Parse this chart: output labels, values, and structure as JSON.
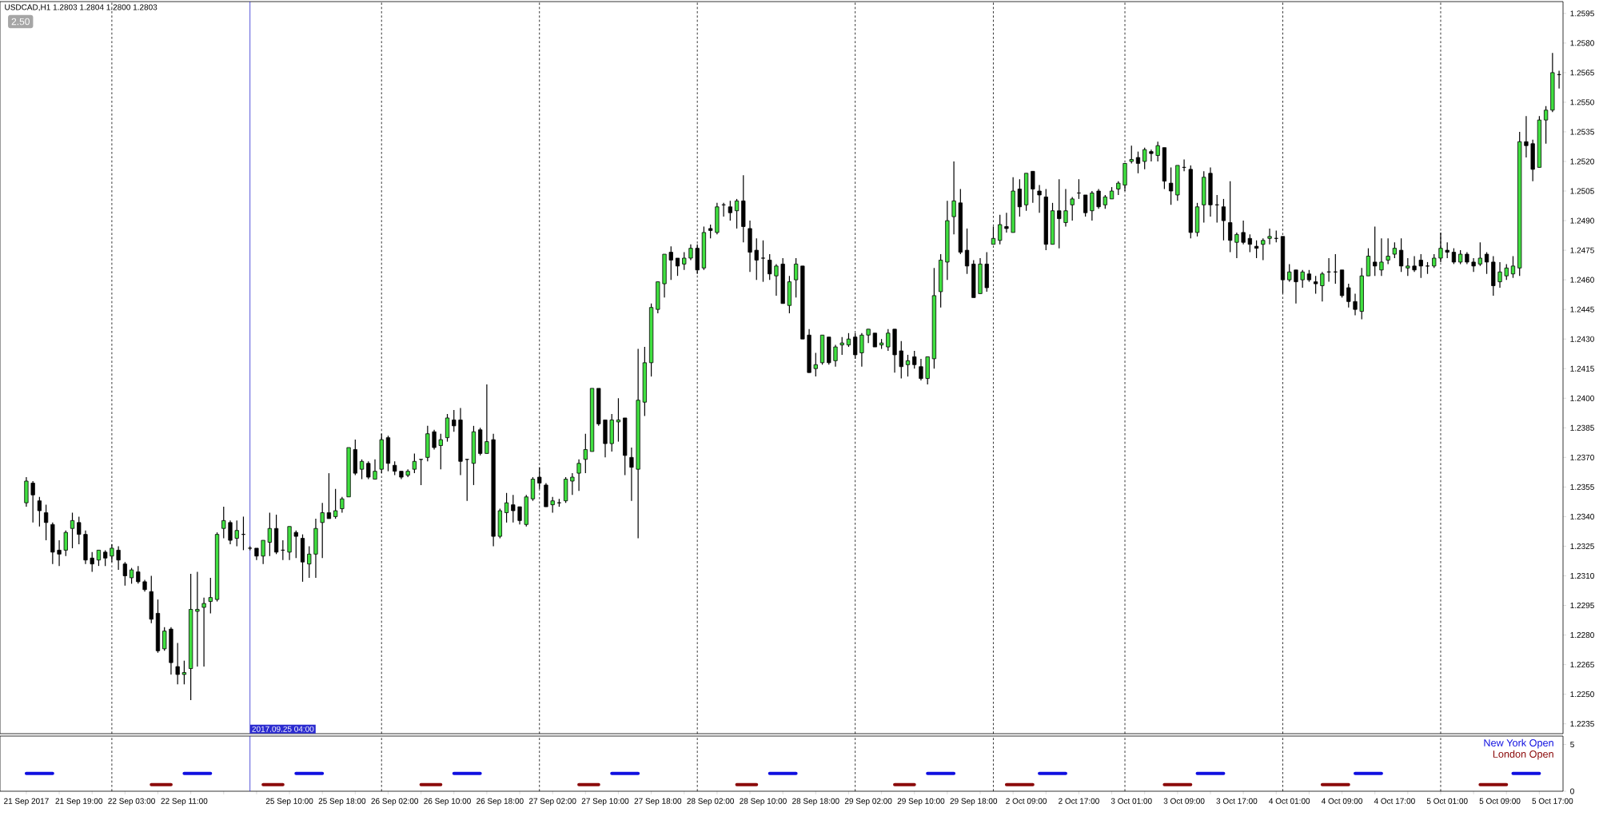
{
  "chart_data": [
    {
      "type": "candlestick",
      "title": "USDCAD,H1 1.2803 1.2804 1.2800 1.2803",
      "annotations": [
        "2.50",
        "2017.09.25 04:00"
      ],
      "categories": [
        "21 Sep 2017",
        null,
        null,
        null,
        null,
        null,
        null,
        null,
        "21 Sep 19:00",
        null,
        null,
        null,
        null,
        null,
        null,
        null,
        "22 Sep 03:00",
        null,
        null,
        null,
        null,
        null,
        null,
        null,
        "22 Sep 11:00",
        null,
        null,
        null,
        null,
        null,
        null,
        null,
        null,
        null,
        null,
        null,
        null,
        null,
        null,
        null,
        "25 Sep 10:00",
        null,
        null,
        null,
        null,
        null,
        null,
        null,
        "25 Sep 18:00",
        null,
        null,
        null,
        null,
        null,
        null,
        null,
        "26 Sep 02:00",
        null,
        null,
        null,
        null,
        null,
        null,
        null,
        "26 Sep 10:00",
        null,
        null,
        null,
        null,
        null,
        null,
        null,
        "26 Sep 18:00",
        null,
        null,
        null,
        null,
        null,
        null,
        null,
        "27 Sep 02:00",
        null,
        null,
        null,
        null,
        null,
        null,
        null,
        "27 Sep 10:00",
        null,
        null,
        null,
        null,
        null,
        null,
        null,
        "27 Sep 18:00",
        null,
        null,
        null,
        null,
        null,
        null,
        null,
        "28 Sep 02:00",
        null,
        null,
        null,
        null,
        null,
        null,
        null,
        "28 Sep 10:00",
        null,
        null,
        null,
        null,
        null,
        null,
        null,
        "28 Sep 18:00",
        null,
        null,
        null,
        null,
        null,
        null,
        null,
        "29 Sep 02:00",
        null,
        null,
        null,
        null,
        null,
        null,
        null,
        "29 Sep 10:00",
        null,
        null,
        null,
        null,
        null,
        null,
        null,
        "29 Sep 18:00",
        null,
        null,
        null,
        null,
        null,
        null,
        null,
        "2 Oct 09:00",
        null,
        null,
        null,
        null,
        null,
        null,
        null,
        "2 Oct 17:00",
        null,
        null,
        null,
        null,
        null,
        null,
        null,
        "3 Oct 01:00",
        null,
        null,
        null,
        null,
        null,
        null,
        null,
        "3 Oct 09:00",
        null,
        null,
        null,
        null,
        null,
        null,
        null,
        "3 Oct 17:00",
        null,
        null,
        null,
        null,
        null,
        null,
        null,
        "4 Oct 01:00",
        null,
        null,
        null,
        null,
        null,
        null,
        null,
        "4 Oct 09:00",
        null,
        null,
        null,
        null,
        null,
        null,
        null,
        "4 Oct 17:00",
        null,
        null,
        null,
        null,
        null,
        null,
        null,
        "5 Oct 01:00",
        null,
        null,
        null,
        null,
        null,
        null,
        null,
        "5 Oct 09:00",
        null,
        null,
        null,
        null,
        null,
        null,
        null,
        "5 Oct 17:00",
        null
      ],
      "ohlc": [
        [
          1.2347,
          1.236,
          1.2345,
          1.2358
        ],
        [
          1.2357,
          1.2358,
          1.2337,
          1.2351
        ],
        [
          1.2348,
          1.235,
          1.2335,
          1.2343
        ],
        [
          1.2342,
          1.2346,
          1.2328,
          1.2337
        ],
        [
          1.2336,
          1.2337,
          1.2316,
          1.2322
        ],
        [
          1.2323,
          1.2328,
          1.2315,
          1.2321
        ],
        [
          1.2323,
          1.2333,
          1.232,
          1.2332
        ],
        [
          1.2334,
          1.2342,
          1.2324,
          1.2338
        ],
        [
          1.2337,
          1.234,
          1.2326,
          1.2331
        ],
        [
          1.2331,
          1.2333,
          1.2316,
          1.2318
        ],
        [
          1.2319,
          1.2322,
          1.2312,
          1.2316
        ],
        [
          1.2318,
          1.2323,
          1.2315,
          1.2323
        ],
        [
          1.2322,
          1.2323,
          1.2315,
          1.2319
        ],
        [
          1.232,
          1.2326,
          1.2317,
          1.2324
        ],
        [
          1.2323,
          1.2325,
          1.2313,
          1.2318
        ],
        [
          1.2316,
          1.2317,
          1.2305,
          1.231
        ],
        [
          1.2309,
          1.2314,
          1.2306,
          1.2313
        ],
        [
          1.2312,
          1.2315,
          1.2306,
          1.2307
        ],
        [
          1.2307,
          1.2308,
          1.2302,
          1.2303
        ],
        [
          1.2302,
          1.231,
          1.2286,
          1.2288
        ],
        [
          1.2291,
          1.2298,
          1.2271,
          1.2272
        ],
        [
          1.2273,
          1.2284,
          1.2272,
          1.2282
        ],
        [
          1.2283,
          1.2284,
          1.226,
          1.2266
        ],
        [
          1.2264,
          1.2276,
          1.2255,
          1.226
        ],
        [
          1.226,
          1.2267,
          1.2255,
          1.2261
        ],
        [
          1.2263,
          1.2311,
          1.2247,
          1.2293
        ],
        [
          1.2292,
          1.2312,
          1.2264,
          1.2293
        ],
        [
          1.2294,
          1.2299,
          1.2264,
          1.2296
        ],
        [
          1.2297,
          1.2309,
          1.2291,
          1.2299
        ],
        [
          1.2298,
          1.2332,
          1.2297,
          1.2331
        ],
        [
          1.2334,
          1.2345,
          1.2329,
          1.2338
        ],
        [
          1.2337,
          1.2338,
          1.2326,
          1.2328
        ],
        [
          1.2329,
          1.2338,
          1.2325,
          1.2333
        ],
        [
          1.2331,
          1.234,
          1.2323,
          1.2331
        ],
        [
          1.2324,
          1.2325,
          1.2323,
          1.2324
        ],
        [
          1.2324,
          1.2324,
          1.2318,
          1.232
        ],
        [
          1.232,
          1.2328,
          1.2316,
          1.2328
        ],
        [
          1.2327,
          1.2342,
          1.232,
          1.2334
        ],
        [
          1.2334,
          1.2341,
          1.2321,
          1.2322
        ],
        [
          1.2323,
          1.2328,
          1.2318,
          1.2323
        ],
        [
          1.2322,
          1.2335,
          1.2318,
          1.2335
        ],
        [
          1.2332,
          1.2333,
          1.2319,
          1.233
        ],
        [
          1.2329,
          1.2331,
          1.2307,
          1.2317
        ],
        [
          1.2316,
          1.2325,
          1.2309,
          1.2321
        ],
        [
          1.2321,
          1.2339,
          1.2309,
          1.2334
        ],
        [
          1.2337,
          1.2347,
          1.2319,
          1.2342
        ],
        [
          1.2342,
          1.2362,
          1.2339,
          1.2339
        ],
        [
          1.234,
          1.2354,
          1.2339,
          1.2343
        ],
        [
          1.2344,
          1.235,
          1.2342,
          1.2349
        ],
        [
          1.235,
          1.2375,
          1.235,
          1.2375
        ],
        [
          1.2374,
          1.2379,
          1.2361,
          1.2362
        ],
        [
          1.2364,
          1.2369,
          1.2359,
          1.2368
        ],
        [
          1.2367,
          1.2368,
          1.2359,
          1.236
        ],
        [
          1.2359,
          1.2369,
          1.2359,
          1.2363
        ],
        [
          1.2364,
          1.2382,
          1.2362,
          1.2379
        ],
        [
          1.238,
          1.2381,
          1.2363,
          1.2367
        ],
        [
          1.2366,
          1.2368,
          1.2361,
          1.2363
        ],
        [
          1.2363,
          1.2363,
          1.2359,
          1.236
        ],
        [
          1.2361,
          1.2364,
          1.236,
          1.2363
        ],
        [
          1.2364,
          1.2372,
          1.2362,
          1.2368
        ],
        [
          1.2369,
          1.2369,
          1.2356,
          1.2369
        ],
        [
          1.237,
          1.2386,
          1.2368,
          1.2382
        ],
        [
          1.2383,
          1.2384,
          1.2374,
          1.2375
        ],
        [
          1.2376,
          1.2382,
          1.2364,
          1.2379
        ],
        [
          1.238,
          1.2392,
          1.2378,
          1.239
        ],
        [
          1.2389,
          1.2394,
          1.2383,
          1.2386
        ],
        [
          1.2389,
          1.2395,
          1.2361,
          1.2368
        ],
        [
          1.2369,
          1.2369,
          1.2348,
          1.2369
        ],
        [
          1.2367,
          1.2386,
          1.2356,
          1.2383
        ],
        [
          1.2384,
          1.2385,
          1.2371,
          1.2372
        ],
        [
          1.2372,
          1.2407,
          1.2372,
          1.2378
        ],
        [
          1.2379,
          1.2382,
          1.2325,
          1.233
        ],
        [
          1.233,
          1.2344,
          1.2329,
          1.2343
        ],
        [
          1.2342,
          1.2352,
          1.2337,
          1.2347
        ],
        [
          1.2346,
          1.2351,
          1.2337,
          1.2343
        ],
        [
          1.2345,
          1.2345,
          1.2336,
          1.2338
        ],
        [
          1.2336,
          1.2351,
          1.2335,
          1.235
        ],
        [
          1.2349,
          1.236,
          1.2348,
          1.2359
        ],
        [
          1.236,
          1.2365,
          1.2354,
          1.2357
        ],
        [
          1.2356,
          1.2357,
          1.2345,
          1.2345
        ],
        [
          1.2346,
          1.235,
          1.2342,
          1.2348
        ],
        [
          1.2347,
          1.2349,
          1.2345,
          1.2347
        ],
        [
          1.2348,
          1.236,
          1.2347,
          1.2359
        ],
        [
          1.2358,
          1.2362,
          1.2351,
          1.236
        ],
        [
          1.2362,
          1.2369,
          1.2353,
          1.2367
        ],
        [
          1.2369,
          1.2382,
          1.2362,
          1.2374
        ],
        [
          1.2373,
          1.2405,
          1.2373,
          1.2405
        ],
        [
          1.2405,
          1.2405,
          1.2386,
          1.2387
        ],
        [
          1.2389,
          1.2389,
          1.237,
          1.2377
        ],
        [
          1.2377,
          1.2392,
          1.2373,
          1.2389
        ],
        [
          1.2388,
          1.24,
          1.2378,
          1.2389
        ],
        [
          1.239,
          1.239,
          1.2361,
          1.2371
        ],
        [
          1.237,
          1.2375,
          1.2348,
          1.2365
        ],
        [
          1.2364,
          1.2425,
          1.2329,
          1.2399
        ],
        [
          1.2398,
          1.2426,
          1.2391,
          1.2418
        ],
        [
          1.2418,
          1.2448,
          1.2411,
          1.2446
        ],
        [
          1.2445,
          1.2459,
          1.2443,
          1.2459
        ],
        [
          1.2458,
          1.2473,
          1.2451,
          1.2473
        ],
        [
          1.2474,
          1.2477,
          1.246,
          1.247
        ],
        [
          1.2471,
          1.2471,
          1.2462,
          1.2467
        ],
        [
          1.2468,
          1.2474,
          1.2465,
          1.2471
        ],
        [
          1.2471,
          1.2478,
          1.247,
          1.2476
        ],
        [
          1.2476,
          1.2478,
          1.2463,
          1.2465
        ],
        [
          1.2466,
          1.2487,
          1.2465,
          1.2484
        ],
        [
          1.2486,
          1.2488,
          1.2481,
          1.2485
        ],
        [
          1.2484,
          1.2499,
          1.2483,
          1.2497
        ],
        [
          1.2498,
          1.2499,
          1.2492,
          1.2498
        ],
        [
          1.2497,
          1.25,
          1.249,
          1.2494
        ],
        [
          1.2495,
          1.2501,
          1.2486,
          1.25
        ],
        [
          1.25,
          1.2513,
          1.2479,
          1.2487
        ],
        [
          1.2486,
          1.249,
          1.2464,
          1.2474
        ],
        [
          1.2475,
          1.2481,
          1.246,
          1.247
        ],
        [
          1.2471,
          1.248,
          1.2459,
          1.2471
        ],
        [
          1.247,
          1.2473,
          1.246,
          1.2463
        ],
        [
          1.2462,
          1.2468,
          1.2452,
          1.2467
        ],
        [
          1.2468,
          1.2471,
          1.2448,
          1.2448
        ],
        [
          1.2447,
          1.2462,
          1.2443,
          1.2459
        ],
        [
          1.246,
          1.2471,
          1.2451,
          1.2468
        ],
        [
          1.2467,
          1.2467,
          1.243,
          1.243
        ],
        [
          1.2432,
          1.2435,
          1.2413,
          1.2413
        ],
        [
          1.2415,
          1.2423,
          1.2411,
          1.2417
        ],
        [
          1.2418,
          1.2432,
          1.2417,
          1.2432
        ],
        [
          1.2431,
          1.2431,
          1.2417,
          1.2418
        ],
        [
          1.2419,
          1.2427,
          1.2416,
          1.2426
        ],
        [
          1.2427,
          1.2431,
          1.2422,
          1.2428
        ],
        [
          1.2427,
          1.2433,
          1.2426,
          1.243
        ],
        [
          1.2431,
          1.2433,
          1.242,
          1.2422
        ],
        [
          1.2423,
          1.2433,
          1.2416,
          1.2432
        ],
        [
          1.2432,
          1.2435,
          1.2428,
          1.2435
        ],
        [
          1.2433,
          1.2433,
          1.2426,
          1.2426
        ],
        [
          1.2427,
          1.243,
          1.2425,
          1.2428
        ],
        [
          1.2426,
          1.2435,
          1.2424,
          1.2433
        ],
        [
          1.2435,
          1.2435,
          1.2413,
          1.2422
        ],
        [
          1.2424,
          1.2429,
          1.241,
          1.2416
        ],
        [
          1.2417,
          1.2422,
          1.2411,
          1.2419
        ],
        [
          1.2421,
          1.2424,
          1.2415,
          1.2417
        ],
        [
          1.2416,
          1.242,
          1.2409,
          1.241
        ],
        [
          1.241,
          1.2421,
          1.2407,
          1.2421
        ],
        [
          1.242,
          1.2466,
          1.2415,
          1.2452
        ],
        [
          1.2454,
          1.2473,
          1.2446,
          1.247
        ],
        [
          1.2469,
          1.25,
          1.246,
          1.249
        ],
        [
          1.2492,
          1.252,
          1.2483,
          1.25
        ],
        [
          1.2499,
          1.2506,
          1.2473,
          1.2474
        ],
        [
          1.2475,
          1.2486,
          1.2463,
          1.2467
        ],
        [
          1.2468,
          1.247,
          1.2451,
          1.2451
        ],
        [
          1.2453,
          1.2471,
          1.2453,
          1.2468
        ],
        [
          1.2468,
          1.2474,
          1.2454,
          1.2456
        ],
        [
          1.2478,
          1.2487,
          1.2478,
          1.2481
        ],
        [
          1.248,
          1.2493,
          1.2478,
          1.2488
        ],
        [
          1.2487,
          1.2494,
          1.2484,
          1.2486
        ],
        [
          1.2484,
          1.2512,
          1.2484,
          1.2505
        ],
        [
          1.2506,
          1.2511,
          1.2492,
          1.2497
        ],
        [
          1.2498,
          1.2514,
          1.2495,
          1.2514
        ],
        [
          1.2515,
          1.2515,
          1.2499,
          1.2506
        ],
        [
          1.2505,
          1.2508,
          1.2494,
          1.2503
        ],
        [
          1.2502,
          1.2506,
          1.2475,
          1.2478
        ],
        [
          1.2478,
          1.2499,
          1.2478,
          1.2495
        ],
        [
          1.2495,
          1.2511,
          1.2476,
          1.2491
        ],
        [
          1.2489,
          1.2506,
          1.2487,
          1.2495
        ],
        [
          1.2498,
          1.2502,
          1.249,
          1.2501
        ],
        [
          1.2504,
          1.2511,
          1.2501,
          1.2504
        ],
        [
          1.2503,
          1.2503,
          1.2492,
          1.2494
        ],
        [
          1.2495,
          1.2505,
          1.249,
          1.2504
        ],
        [
          1.2505,
          1.2506,
          1.2496,
          1.2497
        ],
        [
          1.2498,
          1.2503,
          1.2496,
          1.2502
        ],
        [
          1.2501,
          1.2507,
          1.2501,
          1.2505
        ],
        [
          1.2506,
          1.251,
          1.2503,
          1.2509
        ],
        [
          1.2508,
          1.2519,
          1.2505,
          1.2519
        ],
        [
          1.252,
          1.2528,
          1.2519,
          1.2521
        ],
        [
          1.2522,
          1.2525,
          1.2514,
          1.2519
        ],
        [
          1.252,
          1.2527,
          1.2516,
          1.2526
        ],
        [
          1.2525,
          1.2526,
          1.252,
          1.2524
        ],
        [
          1.2523,
          1.253,
          1.252,
          1.2528
        ],
        [
          1.2527,
          1.2527,
          1.2506,
          1.251
        ],
        [
          1.2509,
          1.2517,
          1.2498,
          1.2505
        ],
        [
          1.2503,
          1.2518,
          1.25,
          1.2518
        ],
        [
          1.2517,
          1.2521,
          1.2515,
          1.2517
        ],
        [
          1.2516,
          1.2518,
          1.2481,
          1.2484
        ],
        [
          1.2484,
          1.2499,
          1.2482,
          1.2497
        ],
        [
          1.2498,
          1.2515,
          1.2489,
          1.2512
        ],
        [
          1.2514,
          1.2517,
          1.2492,
          1.2498
        ],
        [
          1.2498,
          1.2503,
          1.2489,
          1.2498
        ],
        [
          1.2497,
          1.2501,
          1.248,
          1.249
        ],
        [
          1.2489,
          1.251,
          1.2474,
          1.248
        ],
        [
          1.2479,
          1.2484,
          1.2471,
          1.2483
        ],
        [
          1.2484,
          1.249,
          1.2478,
          1.2479
        ],
        [
          1.2481,
          1.2483,
          1.2474,
          1.2478
        ],
        [
          1.2477,
          1.248,
          1.2471,
          1.2476
        ],
        [
          1.2478,
          1.2481,
          1.247,
          1.248
        ],
        [
          1.2481,
          1.2486,
          1.2478,
          1.2482
        ],
        [
          1.2481,
          1.2485,
          1.2479,
          1.2481
        ],
        [
          1.2482,
          1.2482,
          1.2453,
          1.246
        ],
        [
          1.246,
          1.2468,
          1.2459,
          1.2464
        ],
        [
          1.2465,
          1.2465,
          1.2448,
          1.2459
        ],
        [
          1.246,
          1.2465,
          1.2456,
          1.2464
        ],
        [
          1.2463,
          1.2465,
          1.2459,
          1.246
        ],
        [
          1.2459,
          1.2462,
          1.2453,
          1.2458
        ],
        [
          1.2457,
          1.2464,
          1.2449,
          1.2463
        ],
        [
          1.2464,
          1.2471,
          1.2459,
          1.2464
        ],
        [
          1.2464,
          1.2473,
          1.2458,
          1.2464
        ],
        [
          1.2465,
          1.2465,
          1.2451,
          1.2452
        ],
        [
          1.2456,
          1.2458,
          1.2446,
          1.2449
        ],
        [
          1.2449,
          1.2453,
          1.2442,
          1.2445
        ],
        [
          1.2444,
          1.2466,
          1.244,
          1.2462
        ],
        [
          1.2462,
          1.2476,
          1.2462,
          1.2472
        ],
        [
          1.2469,
          1.2487,
          1.2462,
          1.2467
        ],
        [
          1.2465,
          1.2481,
          1.2462,
          1.2469
        ],
        [
          1.247,
          1.2481,
          1.2468,
          1.2472
        ],
        [
          1.2473,
          1.2479,
          1.2471,
          1.2476
        ],
        [
          1.2475,
          1.2481,
          1.2464,
          1.2467
        ],
        [
          1.2466,
          1.2471,
          1.2462,
          1.2467
        ],
        [
          1.2467,
          1.2472,
          1.2464,
          1.2465
        ],
        [
          1.247,
          1.2473,
          1.2461,
          1.2467
        ],
        [
          1.2467,
          1.2469,
          1.2463,
          1.2467
        ],
        [
          1.2467,
          1.2473,
          1.2466,
          1.2471
        ],
        [
          1.2471,
          1.2484,
          1.2469,
          1.2476
        ],
        [
          1.2475,
          1.2479,
          1.2471,
          1.2474
        ],
        [
          1.2474,
          1.2476,
          1.2468,
          1.2469
        ],
        [
          1.2469,
          1.2475,
          1.2468,
          1.2473
        ],
        [
          1.2473,
          1.2474,
          1.2468,
          1.2469
        ],
        [
          1.2469,
          1.2471,
          1.2464,
          1.2467
        ],
        [
          1.2468,
          1.2479,
          1.2467,
          1.2471
        ],
        [
          1.2473,
          1.2474,
          1.2463,
          1.2469
        ],
        [
          1.2469,
          1.2472,
          1.2452,
          1.2457
        ],
        [
          1.2459,
          1.2469,
          1.2456,
          1.2464
        ],
        [
          1.2462,
          1.2468,
          1.246,
          1.2466
        ],
        [
          1.2463,
          1.2472,
          1.2461,
          1.2467
        ],
        [
          1.2466,
          1.2535,
          1.2462,
          1.253
        ],
        [
          1.253,
          1.2543,
          1.2522,
          1.2528
        ],
        [
          1.2529,
          1.2531,
          1.251,
          1.2516
        ],
        [
          1.2517,
          1.2543,
          1.2517,
          1.2541
        ],
        [
          1.2541,
          1.2548,
          1.2529,
          1.2546
        ],
        [
          1.2546,
          1.2575,
          1.2545,
          1.2565
        ],
        [
          1.2564,
          1.2566,
          1.2557,
          1.2564
        ]
      ],
      "yticks": [
        1.2235,
        {
          "value": 1.225,
          "label": "1.2250"
        },
        1.2265,
        {
          "value": 1.228,
          "label": "1.2280"
        },
        1.2295,
        {
          "value": 1.231,
          "label": "1.2310"
        },
        1.2325,
        {
          "value": 1.234,
          "label": "1.2340"
        },
        1.2355,
        {
          "value": 1.237,
          "label": "1.2370"
        },
        1.2385,
        {
          "value": 1.24,
          "label": "1.2400"
        },
        1.2415,
        {
          "value": 1.243,
          "label": "1.2430"
        },
        1.2445,
        {
          "value": 1.246,
          "label": "1.2460"
        },
        1.2475,
        {
          "value": 1.249,
          "label": "1.2490"
        },
        1.2505,
        {
          "value": 1.252,
          "label": "1.2520"
        },
        1.2535,
        {
          "value": 1.255,
          "label": "1.2550"
        },
        1.2565,
        {
          "value": 1.258,
          "label": "1.2580"
        },
        1.2595
      ],
      "ylim": [
        1.223,
        1.2601
      ]
    },
    {
      "type": "line",
      "legend": "top right",
      "tick_labels": "y",
      "categories": [
        null,
        null,
        null,
        null,
        null,
        null,
        null,
        null,
        null,
        null,
        null,
        null,
        null,
        null,
        null,
        null,
        null,
        null,
        null,
        null,
        null,
        null,
        null,
        null,
        null,
        null,
        null,
        null,
        null,
        null,
        null,
        null,
        null,
        null,
        null,
        null,
        null,
        null,
        null,
        null,
        null,
        null,
        null,
        null,
        null,
        null,
        null,
        null,
        null,
        null,
        null,
        null,
        null,
        null,
        null,
        null,
        null,
        null,
        null,
        null,
        null,
        null,
        null,
        null,
        null,
        null,
        null,
        null,
        null,
        null,
        null,
        null,
        null,
        null,
        null,
        null,
        null,
        null,
        null,
        null,
        null,
        null,
        null,
        null,
        null,
        null,
        null,
        null,
        null,
        null,
        null,
        null,
        null,
        null,
        null,
        null,
        null,
        null,
        null,
        null,
        null,
        null,
        null,
        null,
        null,
        null,
        null,
        null,
        null,
        null,
        null,
        null,
        null,
        null,
        null,
        null,
        null,
        null,
        null,
        null,
        null,
        null,
        null,
        null,
        null,
        null,
        null,
        null,
        null,
        null,
        null,
        null,
        null,
        null,
        null,
        null,
        null,
        null,
        null,
        null,
        null,
        null,
        null,
        null,
        null,
        null,
        null,
        null,
        null,
        null,
        null,
        null,
        null,
        null,
        null,
        null,
        null,
        null,
        null,
        null,
        null,
        null,
        null,
        null,
        null,
        null,
        null,
        null,
        null,
        null,
        null,
        null,
        null,
        null,
        null,
        null,
        null,
        null,
        null,
        null,
        null,
        null,
        null,
        null,
        null,
        null,
        null,
        null,
        null,
        null,
        null,
        null,
        null,
        null,
        null,
        null,
        null,
        null,
        null,
        null,
        null,
        null,
        null,
        null,
        null,
        null,
        null,
        null,
        null,
        null,
        null,
        null,
        null,
        null,
        null,
        null,
        null,
        null,
        null,
        null,
        null,
        null,
        null,
        null,
        null,
        null,
        null,
        null,
        null,
        null,
        null,
        null,
        null,
        null
      ],
      "series": [
        {
          "name": "New York Open",
          "color": "#1010e0",
          "values": [
            1.9,
            1.9,
            1.9,
            1.9,
            1.9,
            null,
            null,
            null,
            null,
            null,
            null,
            null,
            null,
            null,
            null,
            null,
            null,
            null,
            null,
            null,
            null,
            null,
            null,
            null,
            1.9,
            1.9,
            1.9,
            1.9,
            1.9,
            null,
            null,
            null,
            null,
            null,
            null,
            null,
            null,
            null,
            null,
            null,
            null,
            1.9,
            1.9,
            1.9,
            1.9,
            1.9,
            null,
            null,
            null,
            null,
            null,
            null,
            null,
            null,
            null,
            null,
            null,
            null,
            null,
            null,
            null,
            null,
            null,
            null,
            null,
            1.9,
            1.9,
            1.9,
            1.9,
            1.9,
            null,
            null,
            null,
            null,
            null,
            null,
            null,
            null,
            null,
            null,
            null,
            null,
            null,
            null,
            null,
            null,
            null,
            null,
            null,
            1.9,
            1.9,
            1.9,
            1.9,
            1.9,
            null,
            null,
            null,
            null,
            null,
            null,
            null,
            null,
            null,
            null,
            null,
            null,
            null,
            null,
            null,
            null,
            null,
            null,
            null,
            1.9,
            1.9,
            1.9,
            1.9,
            1.9,
            null,
            null,
            null,
            null,
            null,
            null,
            null,
            null,
            null,
            null,
            null,
            null,
            null,
            null,
            null,
            null,
            null,
            null,
            null,
            1.9,
            1.9,
            1.9,
            1.9,
            1.9,
            null,
            null,
            null,
            null,
            null,
            null,
            null,
            null,
            null,
            null,
            null,
            null,
            1.9,
            1.9,
            1.9,
            1.9,
            1.9,
            null,
            null,
            null,
            null,
            null,
            null,
            null,
            null,
            null,
            null,
            null,
            null,
            null,
            null,
            null,
            null,
            null,
            null,
            null,
            1.9,
            1.9,
            1.9,
            1.9,
            1.9,
            null,
            null,
            null,
            null,
            null,
            null,
            null,
            null,
            null,
            null,
            null,
            null,
            null,
            null,
            null,
            null,
            null,
            null,
            null,
            1.9,
            1.9,
            1.9,
            1.9,
            1.9,
            null,
            null,
            null,
            null,
            null,
            null,
            null,
            null,
            null,
            null,
            null,
            null,
            null,
            null,
            null,
            null,
            null,
            null,
            null,
            1.9,
            1.9,
            1.9,
            1.9,
            1.9,
            null,
            null,
            null
          ]
        },
        {
          "name": "London Open",
          "color": "#8b0a0a",
          "values": [
            null,
            null,
            null,
            null,
            null,
            null,
            null,
            null,
            null,
            null,
            null,
            null,
            null,
            null,
            null,
            null,
            null,
            null,
            null,
            0.7,
            0.7,
            0.7,
            0.7,
            null,
            null,
            null,
            null,
            null,
            null,
            null,
            null,
            null,
            null,
            null,
            null,
            null,
            0.7,
            0.7,
            0.7,
            0.7,
            null,
            null,
            null,
            null,
            null,
            null,
            null,
            null,
            null,
            null,
            null,
            null,
            null,
            null,
            null,
            null,
            null,
            null,
            null,
            null,
            0.7,
            0.7,
            0.7,
            0.7,
            null,
            null,
            null,
            null,
            null,
            null,
            null,
            null,
            null,
            null,
            null,
            null,
            null,
            null,
            null,
            null,
            null,
            null,
            null,
            null,
            0.7,
            0.7,
            0.7,
            0.7,
            null,
            null,
            null,
            null,
            null,
            null,
            null,
            null,
            null,
            null,
            null,
            null,
            null,
            null,
            null,
            null,
            null,
            null,
            null,
            null,
            0.7,
            0.7,
            0.7,
            0.7,
            null,
            null,
            null,
            null,
            null,
            null,
            null,
            null,
            null,
            null,
            null,
            null,
            null,
            null,
            null,
            null,
            null,
            null,
            null,
            null,
            0.7,
            0.7,
            0.7,
            0.7,
            null,
            null,
            null,
            null,
            null,
            null,
            null,
            null,
            null,
            null,
            null,
            null,
            null,
            0.7,
            0.7,
            0.7,
            0.7,
            0.7,
            null,
            null,
            null,
            null,
            null,
            null,
            null,
            null,
            null,
            null,
            null,
            null,
            null,
            null,
            null,
            null,
            null,
            null,
            null,
            0.7,
            0.7,
            0.7,
            0.7,
            0.7,
            null,
            null,
            null,
            null,
            null,
            null,
            null,
            null,
            null,
            null,
            null,
            null,
            null,
            null,
            null,
            null,
            null,
            null,
            null,
            0.7,
            0.7,
            0.7,
            0.7,
            0.7,
            null,
            null,
            null,
            null,
            null,
            null,
            null,
            null,
            null,
            null,
            null,
            null,
            null,
            null,
            null,
            null,
            null,
            null,
            null,
            0.7,
            0.7,
            0.7,
            0.7,
            0.7,
            null,
            null,
            null,
            null,
            null,
            null,
            null,
            null
          ]
        }
      ],
      "ylim": [
        0,
        5.9
      ],
      "yticks": [
        0,
        5
      ]
    }
  ]
}
